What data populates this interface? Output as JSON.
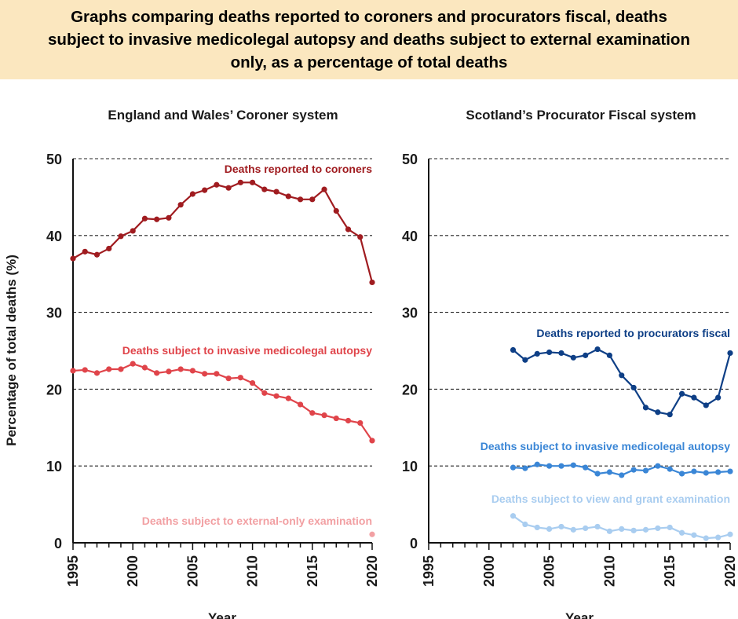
{
  "header": {
    "title": "Graphs comparing deaths reported to coroners and procurators fiscal, deaths\nsubject to invasive medicolegal autopsy and deaths subject to external examination\nonly, as a percentage of total deaths"
  },
  "shared": {
    "ylabel": "Percentage of total deaths (%)",
    "xlabel": "Year"
  },
  "chart_data": [
    {
      "type": "line",
      "title": "England and Wales’ Coroner system",
      "xlabel": "Year",
      "ylabel": "Percentage of total deaths (%)",
      "xlim": [
        1995,
        2020
      ],
      "ylim": [
        0,
        50
      ],
      "xticks": [
        1995,
        2000,
        2005,
        2010,
        2015,
        2020
      ],
      "yticks": [
        0,
        10,
        20,
        30,
        40,
        50
      ],
      "grid": "horizontal dashed",
      "series": [
        {
          "name": "Deaths reported to coroners",
          "color": "#a01c20",
          "x": [
            1995,
            1996,
            1997,
            1998,
            1999,
            2000,
            2001,
            2002,
            2003,
            2004,
            2005,
            2006,
            2007,
            2008,
            2009,
            2010,
            2011,
            2012,
            2013,
            2014,
            2015,
            2016,
            2017,
            2018,
            2019,
            2020
          ],
          "values": [
            37.0,
            37.9,
            37.5,
            38.3,
            39.9,
            40.6,
            42.2,
            42.1,
            42.3,
            44.0,
            45.4,
            45.9,
            46.6,
            46.2,
            46.9,
            46.9,
            46.0,
            45.7,
            45.1,
            44.7,
            44.7,
            46.0,
            43.2,
            40.8,
            39.8,
            33.9
          ]
        },
        {
          "name": "Deaths subject to invasive medicolegal autopsy",
          "color": "#e0444a",
          "x": [
            1995,
            1996,
            1997,
            1998,
            1999,
            2000,
            2001,
            2002,
            2003,
            2004,
            2005,
            2006,
            2007,
            2008,
            2009,
            2010,
            2011,
            2012,
            2013,
            2014,
            2015,
            2016,
            2017,
            2018,
            2019,
            2020
          ],
          "values": [
            22.4,
            22.5,
            22.1,
            22.6,
            22.6,
            23.3,
            22.8,
            22.1,
            22.3,
            22.6,
            22.4,
            22.0,
            22.0,
            21.4,
            21.5,
            20.8,
            19.5,
            19.1,
            18.8,
            18.0,
            16.9,
            16.6,
            16.2,
            15.9,
            15.6,
            13.3
          ]
        },
        {
          "name": "Deaths subject to external-only examination",
          "color": "#f2a0a3",
          "x": [
            2020
          ],
          "values": [
            1.1
          ]
        }
      ]
    },
    {
      "type": "line",
      "title": "Scotland’s Procurator Fiscal system",
      "xlabel": "Year",
      "ylabel": "",
      "xlim": [
        1995,
        2020
      ],
      "ylim": [
        0,
        50
      ],
      "xticks": [
        1995,
        2000,
        2005,
        2010,
        2015,
        2020
      ],
      "yticks": [
        0,
        10,
        20,
        30,
        40,
        50
      ],
      "grid": "horizontal dashed",
      "series": [
        {
          "name": "Deaths reported to procurators fiscal",
          "color": "#0e3f86",
          "x": [
            2002,
            2003,
            2004,
            2005,
            2006,
            2007,
            2008,
            2009,
            2010,
            2011,
            2012,
            2013,
            2014,
            2015,
            2016,
            2017,
            2018,
            2019,
            2020
          ],
          "values": [
            25.1,
            23.8,
            24.6,
            24.8,
            24.7,
            24.1,
            24.4,
            25.2,
            24.4,
            21.8,
            20.2,
            17.6,
            17.0,
            16.7,
            19.4,
            18.9,
            17.9,
            18.9,
            24.7
          ]
        },
        {
          "name": "Deaths subject to invasive medicolegal autopsy",
          "color": "#3a86d6",
          "x": [
            2002,
            2003,
            2004,
            2005,
            2006,
            2007,
            2008,
            2009,
            2010,
            2011,
            2012,
            2013,
            2014,
            2015,
            2016,
            2017,
            2018,
            2019,
            2020
          ],
          "values": [
            9.8,
            9.7,
            10.2,
            10.0,
            10.0,
            10.1,
            9.8,
            9.0,
            9.2,
            8.8,
            9.5,
            9.4,
            10.0,
            9.6,
            9.0,
            9.3,
            9.1,
            9.2,
            9.3
          ]
        },
        {
          "name": "Deaths subject to view and grant examination",
          "color": "#a9cdf0",
          "x": [
            2002,
            2003,
            2004,
            2005,
            2006,
            2007,
            2008,
            2009,
            2010,
            2011,
            2012,
            2013,
            2014,
            2015,
            2016,
            2017,
            2018,
            2019,
            2020
          ],
          "values": [
            3.5,
            2.4,
            2.0,
            1.8,
            2.1,
            1.7,
            1.9,
            2.1,
            1.5,
            1.8,
            1.6,
            1.7,
            1.9,
            2.0,
            1.3,
            1.0,
            0.6,
            0.7,
            1.1
          ]
        }
      ]
    }
  ]
}
